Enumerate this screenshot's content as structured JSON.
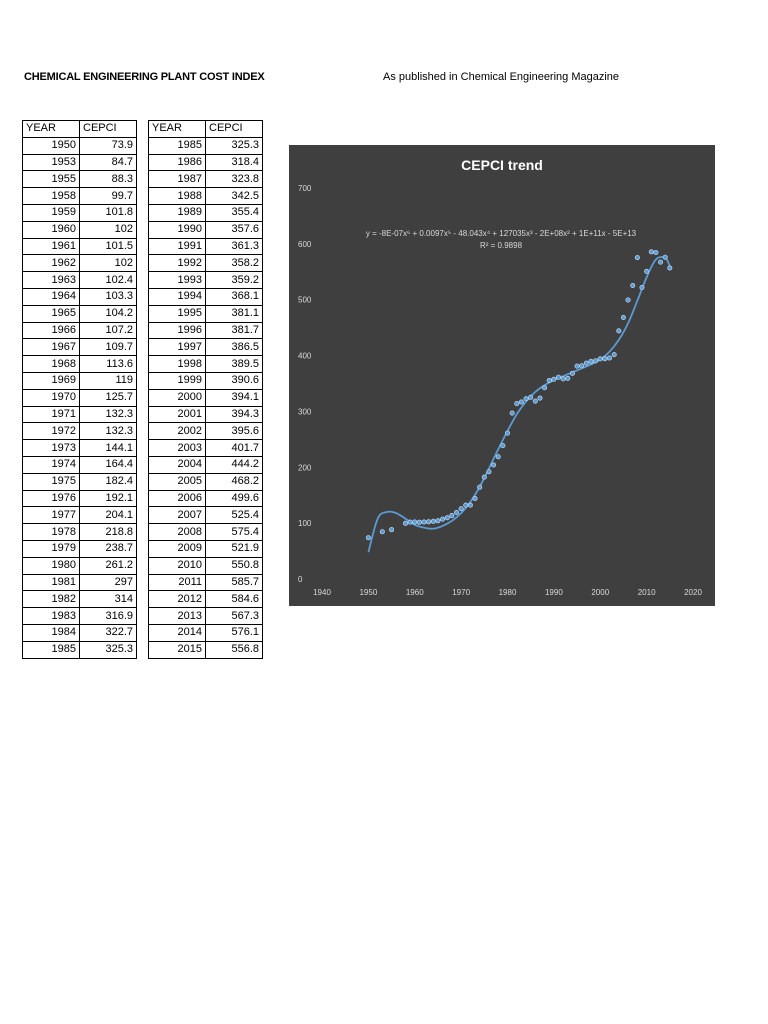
{
  "header": {
    "left_title": "CHEMICAL ENGINEERING PLANT COST INDEX",
    "right_title": "As published in Chemical Engineering Magazine"
  },
  "tables": [
    {
      "col_year": "YEAR",
      "col_value": "CEPCI",
      "rows": [
        [
          "1950",
          "73.9"
        ],
        [
          "1953",
          "84.7"
        ],
        [
          "1955",
          "88.3"
        ],
        [
          "1958",
          "99.7"
        ],
        [
          "1959",
          "101.8"
        ],
        [
          "1960",
          "102"
        ],
        [
          "1961",
          "101.5"
        ],
        [
          "1962",
          "102"
        ],
        [
          "1963",
          "102.4"
        ],
        [
          "1964",
          "103.3"
        ],
        [
          "1965",
          "104.2"
        ],
        [
          "1966",
          "107.2"
        ],
        [
          "1967",
          "109.7"
        ],
        [
          "1968",
          "113.6"
        ],
        [
          "1969",
          "119"
        ],
        [
          "1970",
          "125.7"
        ],
        [
          "1971",
          "132.3"
        ],
        [
          "1972",
          "132.3"
        ],
        [
          "1973",
          "144.1"
        ],
        [
          "1974",
          "164.4"
        ],
        [
          "1975",
          "182.4"
        ],
        [
          "1976",
          "192.1"
        ],
        [
          "1977",
          "204.1"
        ],
        [
          "1978",
          "218.8"
        ],
        [
          "1979",
          "238.7"
        ],
        [
          "1980",
          "261.2"
        ],
        [
          "1981",
          "297"
        ],
        [
          "1982",
          "314"
        ],
        [
          "1983",
          "316.9"
        ],
        [
          "1984",
          "322.7"
        ],
        [
          "1985",
          "325.3"
        ]
      ]
    },
    {
      "col_year": "YEAR",
      "col_value": "CEPCI",
      "rows": [
        [
          "1985",
          "325.3"
        ],
        [
          "1986",
          "318.4"
        ],
        [
          "1987",
          "323.8"
        ],
        [
          "1988",
          "342.5"
        ],
        [
          "1989",
          "355.4"
        ],
        [
          "1990",
          "357.6"
        ],
        [
          "1991",
          "361.3"
        ],
        [
          "1992",
          "358.2"
        ],
        [
          "1993",
          "359.2"
        ],
        [
          "1994",
          "368.1"
        ],
        [
          "1995",
          "381.1"
        ],
        [
          "1996",
          "381.7"
        ],
        [
          "1997",
          "386.5"
        ],
        [
          "1998",
          "389.5"
        ],
        [
          "1999",
          "390.6"
        ],
        [
          "2000",
          "394.1"
        ],
        [
          "2001",
          "394.3"
        ],
        [
          "2002",
          "395.6"
        ],
        [
          "2003",
          "401.7"
        ],
        [
          "2004",
          "444.2"
        ],
        [
          "2005",
          "468.2"
        ],
        [
          "2006",
          "499.6"
        ],
        [
          "2007",
          "525.4"
        ],
        [
          "2008",
          "575.4"
        ],
        [
          "2009",
          "521.9"
        ],
        [
          "2010",
          "550.8"
        ],
        [
          "2011",
          "585.7"
        ],
        [
          "2012",
          "584.6"
        ],
        [
          "2013",
          "567.3"
        ],
        [
          "2014",
          "576.1"
        ],
        [
          "2015",
          "556.8"
        ]
      ]
    }
  ],
  "chart_data": {
    "type": "scatter",
    "title": "CEPCI trend",
    "trendline_equation": "y = -8E-07x⁶ + 0.0097x⁵ - 48.043x⁴ + 127035x³ - 2E+08x² + 1E+11x - 5E+13",
    "r_squared": "R² = 0.9898",
    "xlim": [
      1940,
      2020
    ],
    "ylim": [
      0,
      700
    ],
    "x_ticks": [
      1940,
      1950,
      1960,
      1970,
      1980,
      1990,
      2000,
      2010,
      2020
    ],
    "y_ticks": [
      0,
      100,
      200,
      300,
      400,
      500,
      600,
      700
    ],
    "grid": false,
    "colors": {
      "background": "#3f3f3f",
      "marker": "#5b9bd5",
      "trend": "#5b9bd5",
      "text": "#d9d9d9"
    },
    "trend_points": [
      [
        1950,
        48
      ],
      [
        1952,
        108
      ],
      [
        1954,
        120
      ],
      [
        1956,
        118
      ],
      [
        1958,
        108
      ],
      [
        1960,
        97
      ],
      [
        1962,
        92
      ],
      [
        1964,
        90
      ],
      [
        1966,
        95
      ],
      [
        1968,
        104
      ],
      [
        1970,
        118
      ],
      [
        1972,
        138
      ],
      [
        1974,
        165
      ],
      [
        1976,
        198
      ],
      [
        1978,
        232
      ],
      [
        1980,
        265
      ],
      [
        1982,
        295
      ],
      [
        1984,
        318
      ],
      [
        1986,
        335
      ],
      [
        1988,
        347
      ],
      [
        1990,
        356
      ],
      [
        1992,
        363
      ],
      [
        1994,
        370
      ],
      [
        1996,
        377
      ],
      [
        1998,
        384
      ],
      [
        2000,
        393
      ],
      [
        2002,
        407
      ],
      [
        2004,
        428
      ],
      [
        2006,
        458
      ],
      [
        2008,
        498
      ],
      [
        2010,
        540
      ],
      [
        2012,
        572
      ],
      [
        2014,
        575
      ],
      [
        2015,
        560
      ]
    ]
  }
}
